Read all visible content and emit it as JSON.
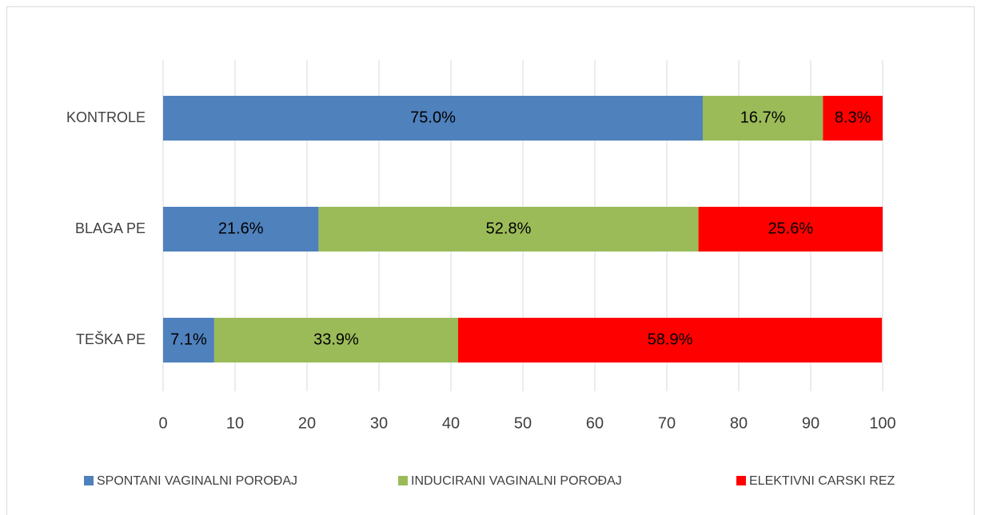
{
  "chart_data": {
    "type": "bar",
    "orientation": "horizontal",
    "stacked": true,
    "categories": [
      "KONTROLE",
      "BLAGA PE",
      "TEŠKA PE"
    ],
    "series": [
      {
        "name": "SPONTANI VAGINALNI POROĐAJ",
        "color": "#4f81bd",
        "values": [
          75.0,
          21.6,
          7.1
        ],
        "value_labels": [
          "75.0%",
          "21.6%",
          "7.1%"
        ]
      },
      {
        "name": "INDUCIRANI VAGINALNI POROĐAJ",
        "color": "#9bbb59",
        "values": [
          16.7,
          52.8,
          33.9
        ],
        "value_labels": [
          "16.7%",
          "52.8%",
          "33.9%"
        ]
      },
      {
        "name": "ELEKTIVNI CARSKI REZ",
        "color": "#ff0000",
        "values": [
          8.3,
          25.6,
          58.9
        ],
        "value_labels": [
          "8.3%",
          "25.6%",
          "58.9%"
        ]
      }
    ],
    "xlim": [
      0,
      100
    ],
    "xticks": [
      0,
      10,
      20,
      30,
      40,
      50,
      60,
      70,
      80,
      90,
      100
    ],
    "grid": true,
    "legend": "bottom"
  }
}
